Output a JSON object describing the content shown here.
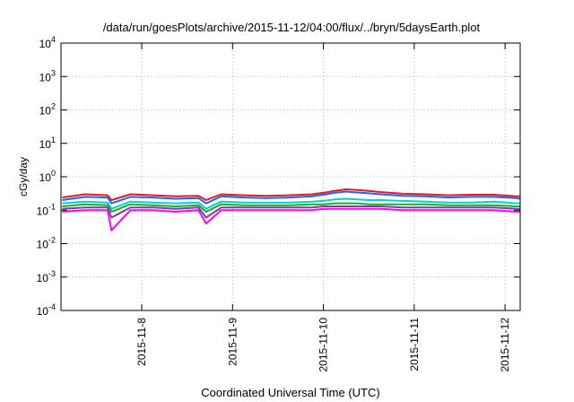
{
  "chart_data": {
    "type": "line",
    "title": "/data/run/goesPlots/archive/2015-11-12/04:00/flux/../bryn/5daysEarth.plot",
    "xlabel": "Coordinated Universal Time (UTC)",
    "ylabel": "cGy/day",
    "yscale": "log",
    "ylim": [
      0.0001,
      10000
    ],
    "xlim": [
      "2015-11-07T02:40",
      "2015-11-12T04:00"
    ],
    "grid": true,
    "legend": "none",
    "yticks": [
      {
        "base": "10",
        "exp": "-4"
      },
      {
        "base": "10",
        "exp": "-3"
      },
      {
        "base": "10",
        "exp": "-2"
      },
      {
        "base": "10",
        "exp": "-1"
      },
      {
        "base": "10",
        "exp": "0"
      },
      {
        "base": "10",
        "exp": "1"
      },
      {
        "base": "10",
        "exp": "2"
      },
      {
        "base": "10",
        "exp": "3"
      },
      {
        "base": "10",
        "exp": "4"
      }
    ],
    "xticks": [
      "2015-11-8",
      "2015-11-9",
      "2015-11-10",
      "2015-11-11",
      "2015-11-12"
    ],
    "x": [
      "2015-11-07T03:00",
      "2015-11-07T09:00",
      "2015-11-07T15:00",
      "2015-11-07T16:00",
      "2015-11-07T21:00",
      "2015-11-08T03:00",
      "2015-11-08T09:00",
      "2015-11-08T15:00",
      "2015-11-08T17:00",
      "2015-11-08T21:00",
      "2015-11-09T03:00",
      "2015-11-09T09:00",
      "2015-11-09T15:00",
      "2015-11-09T21:00",
      "2015-11-10T00:00",
      "2015-11-10T03:00",
      "2015-11-10T06:00",
      "2015-11-10T09:00",
      "2015-11-10T12:00",
      "2015-11-10T15:00",
      "2015-11-10T21:00",
      "2015-11-11T03:00",
      "2015-11-11T09:00",
      "2015-11-11T15:00",
      "2015-11-11T21:00",
      "2015-11-12T03:00",
      "2015-11-12T04:00"
    ],
    "series": [
      {
        "color": "#e41a1c",
        "values": [
          0.24,
          0.3,
          0.28,
          0.2,
          0.3,
          0.28,
          0.26,
          0.27,
          0.2,
          0.3,
          0.28,
          0.27,
          0.28,
          0.3,
          0.33,
          0.38,
          0.42,
          0.4,
          0.38,
          0.35,
          0.31,
          0.3,
          0.28,
          0.29,
          0.29,
          0.26,
          0.26
        ]
      },
      {
        "color": "#1e63ff",
        "values": [
          0.2,
          0.25,
          0.24,
          0.16,
          0.25,
          0.24,
          0.22,
          0.23,
          0.16,
          0.26,
          0.24,
          0.23,
          0.24,
          0.26,
          0.29,
          0.33,
          0.36,
          0.34,
          0.32,
          0.3,
          0.27,
          0.26,
          0.24,
          0.25,
          0.25,
          0.23,
          0.22
        ]
      },
      {
        "color": "#00d2d2",
        "values": [
          0.16,
          0.18,
          0.17,
          0.11,
          0.18,
          0.17,
          0.16,
          0.17,
          0.11,
          0.18,
          0.17,
          0.17,
          0.17,
          0.18,
          0.19,
          0.21,
          0.22,
          0.21,
          0.2,
          0.2,
          0.19,
          0.18,
          0.17,
          0.17,
          0.18,
          0.16,
          0.16
        ]
      },
      {
        "color": "#22aa22",
        "values": [
          0.13,
          0.15,
          0.14,
          0.09,
          0.15,
          0.14,
          0.13,
          0.14,
          0.09,
          0.15,
          0.14,
          0.14,
          0.14,
          0.15,
          0.15,
          0.16,
          0.16,
          0.16,
          0.15,
          0.15,
          0.15,
          0.15,
          0.14,
          0.14,
          0.14,
          0.13,
          0.13
        ]
      },
      {
        "color": "#7a3fa0",
        "values": [
          0.11,
          0.12,
          0.12,
          0.06,
          0.12,
          0.12,
          0.11,
          0.12,
          0.06,
          0.12,
          0.12,
          0.12,
          0.12,
          0.12,
          0.13,
          0.13,
          0.13,
          0.13,
          0.13,
          0.13,
          0.12,
          0.12,
          0.12,
          0.12,
          0.12,
          0.11,
          0.11
        ]
      },
      {
        "color": "#ff00ff",
        "values": [
          0.09,
          0.1,
          0.1,
          0.025,
          0.1,
          0.1,
          0.09,
          0.1,
          0.04,
          0.1,
          0.1,
          0.1,
          0.1,
          0.1,
          0.11,
          0.11,
          0.11,
          0.11,
          0.11,
          0.11,
          0.1,
          0.1,
          0.1,
          0.1,
          0.1,
          0.09,
          0.09
        ]
      }
    ]
  }
}
